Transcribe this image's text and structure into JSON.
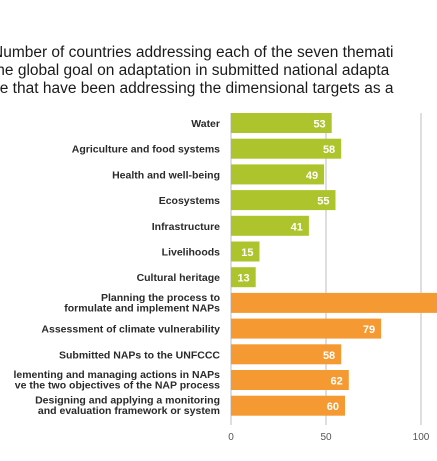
{
  "title_lines": [
    "Number of countries addressing each of the seven themati",
    "the global goal on adaptation in submitted national adapta",
    "se that have been addressing the dimensional targets as a"
  ],
  "colors": {
    "green": "#aec42c",
    "orange": "#f59a33",
    "grid": "#bdbdbd"
  },
  "chart_data": {
    "type": "bar",
    "orientation": "horizontal",
    "categories": [
      [
        "Water"
      ],
      [
        "Agriculture and food systems"
      ],
      [
        "Health and well-being"
      ],
      [
        "Ecosystems"
      ],
      [
        "Infrastructure"
      ],
      [
        "Livelihoods"
      ],
      [
        "Cultural heritage"
      ],
      [
        "Planning the process to",
        "formulate and implement NAPs"
      ],
      [
        "Assessment of climate vulnerability"
      ],
      [
        "Submitted NAPs to the UNFCCC"
      ],
      [
        "lementing and managing actions in NAPs",
        "ve the two objectives of the NAP process"
      ],
      [
        "Designing and applying a monitoring",
        "and evaluation framework or system"
      ]
    ],
    "values": [
      53,
      58,
      49,
      55,
      41,
      15,
      13,
      null,
      79,
      58,
      62,
      60
    ],
    "bar_groups": [
      "thematic",
      "thematic",
      "thematic",
      "thematic",
      "thematic",
      "thematic",
      "thematic",
      "dimensional",
      "dimensional",
      "dimensional",
      "dimensional",
      "dimensional"
    ],
    "xlim": [
      0,
      105
    ],
    "xticks": [
      0,
      50,
      100
    ],
    "grid": true
  }
}
